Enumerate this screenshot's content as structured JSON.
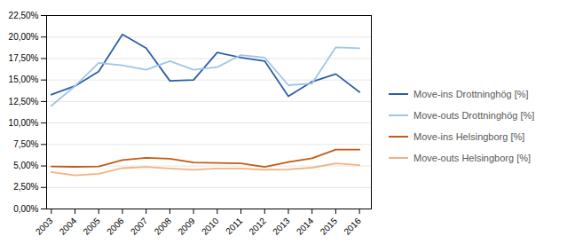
{
  "chart_data": {
    "type": "line",
    "x": [
      2003,
      2004,
      2005,
      2006,
      2007,
      2008,
      2009,
      2010,
      2011,
      2012,
      2013,
      2014,
      2015,
      2016
    ],
    "series": [
      {
        "name": "Move-ins Drottninghög [%]",
        "color": "#2e5ea8",
        "values": [
          0.133,
          0.143,
          0.16,
          0.203,
          0.187,
          0.149,
          0.15,
          0.182,
          0.176,
          0.172,
          0.131,
          0.148,
          0.157,
          0.136
        ]
      },
      {
        "name": "Move-outs Drottninghög [%]",
        "color": "#9ec6e8",
        "values": [
          0.12,
          0.143,
          0.17,
          0.167,
          0.162,
          0.172,
          0.162,
          0.165,
          0.179,
          0.176,
          0.144,
          0.146,
          0.188,
          0.187
        ]
      },
      {
        "name": "Move-ins Helsingborg [%]",
        "color": "#c55a11",
        "values": [
          0.0495,
          0.049,
          0.0495,
          0.057,
          0.0595,
          0.0585,
          0.054,
          0.0535,
          0.053,
          0.049,
          0.0545,
          0.059,
          0.069,
          0.069
        ]
      },
      {
        "name": "Move-outs Helsingborg [%]",
        "color": "#f4b183",
        "values": [
          0.043,
          0.039,
          0.041,
          0.0475,
          0.049,
          0.047,
          0.0455,
          0.047,
          0.047,
          0.0455,
          0.046,
          0.048,
          0.053,
          0.051
        ]
      }
    ],
    "xlim": [
      2002.8,
      2016.5
    ],
    "xticks": [
      2003,
      2004,
      2005,
      2006,
      2007,
      2008,
      2009,
      2010,
      2011,
      2012,
      2013,
      2014,
      2015,
      2016
    ],
    "ylim": [
      0.0,
      0.225
    ],
    "yticks": [
      {
        "value": 0.0,
        "label": "0,00%"
      },
      {
        "value": 0.025,
        "label": "2,50%"
      },
      {
        "value": 0.05,
        "label": "5,00%"
      },
      {
        "value": 0.075,
        "label": "7,50%"
      },
      {
        "value": 0.1,
        "label": "10,00%"
      },
      {
        "value": 0.125,
        "label": "12,50%"
      },
      {
        "value": 0.15,
        "label": "15,00%"
      },
      {
        "value": 0.175,
        "label": "17,50%"
      },
      {
        "value": 0.2,
        "label": "20,00%"
      },
      {
        "value": 0.225,
        "label": "22,50%"
      }
    ],
    "grid": "y",
    "legend": "right"
  }
}
